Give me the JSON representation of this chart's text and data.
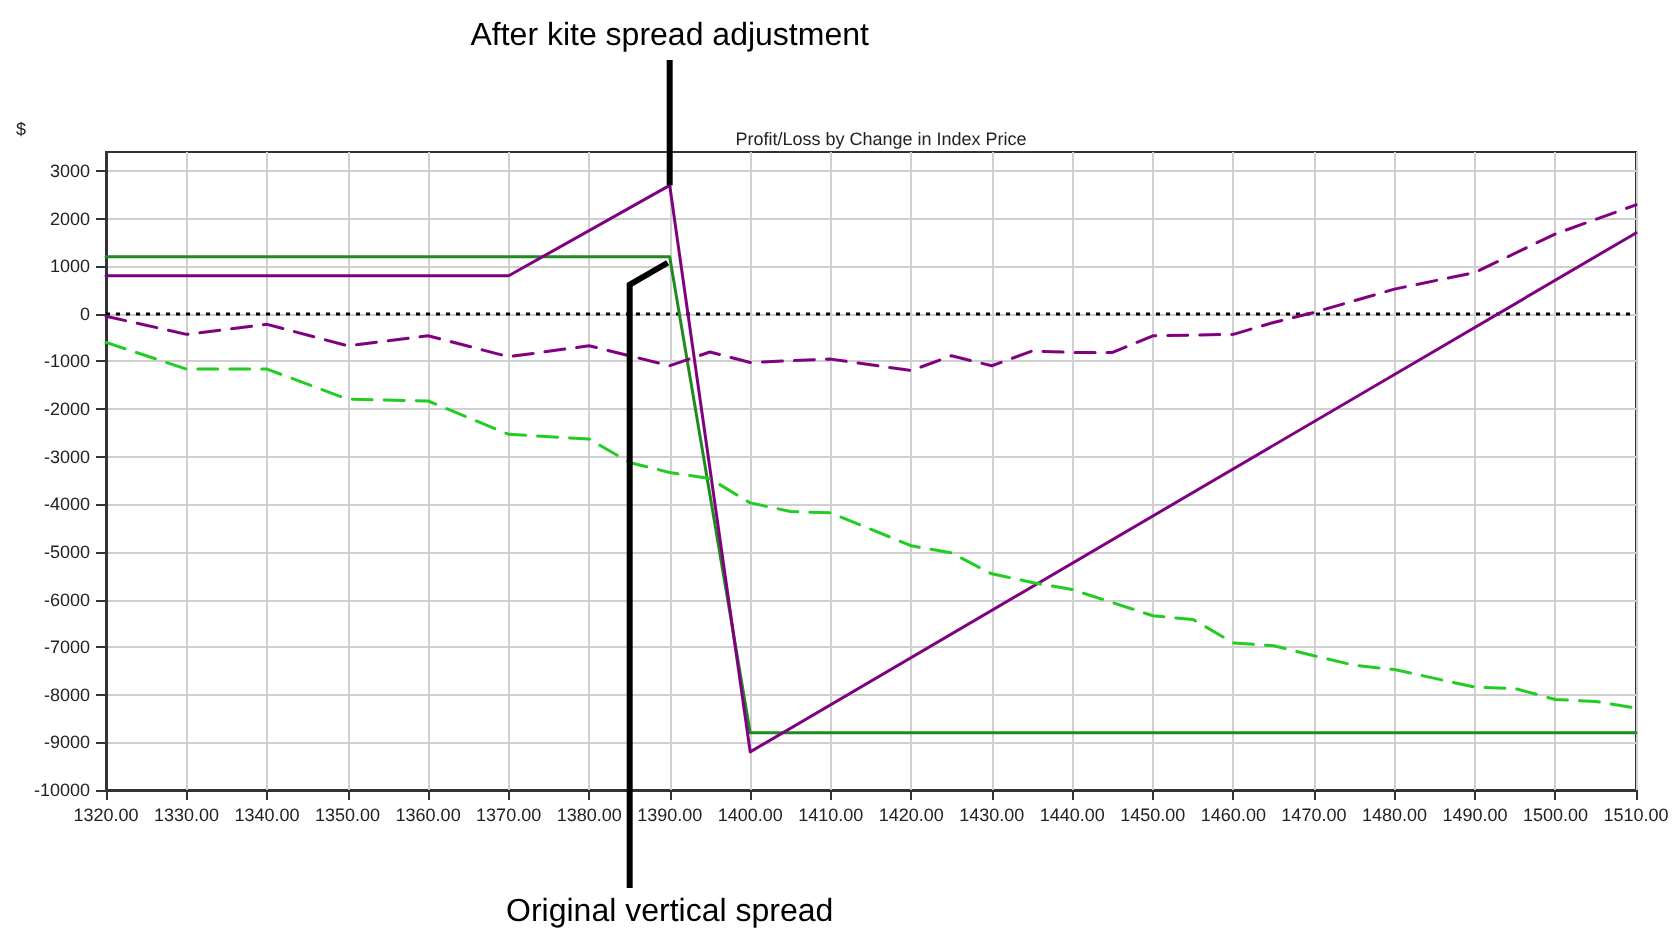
{
  "chart_data": {
    "type": "line",
    "title": "Profit/Loss by Change in Index Price",
    "ylabel": "$",
    "annotations": [
      {
        "text": "After kite spread adjustment",
        "x": 1390,
        "y": 2700
      },
      {
        "text": "Original vertical spread",
        "x": 1390,
        "y": 1200
      }
    ],
    "xlim": [
      1320,
      1510
    ],
    "ylim": [
      -10000,
      3400
    ],
    "xticks": [
      {
        "value": 1320,
        "label": "1320.00"
      },
      {
        "value": 1330,
        "label": "1330.00"
      },
      {
        "value": 1340,
        "label": "1340.00"
      },
      {
        "value": 1350,
        "label": "1350.00"
      },
      {
        "value": 1360,
        "label": "1360.00"
      },
      {
        "value": 1370,
        "label": "1370.00"
      },
      {
        "value": 1380,
        "label": "1380.00"
      },
      {
        "value": 1390,
        "label": "1390.00"
      },
      {
        "value": 1400,
        "label": "1400.00"
      },
      {
        "value": 1410,
        "label": "1410.00"
      },
      {
        "value": 1420,
        "label": "1420.00"
      },
      {
        "value": 1430,
        "label": "1430.00"
      },
      {
        "value": 1440,
        "label": "1440.00"
      },
      {
        "value": 1450,
        "label": "1450.00"
      },
      {
        "value": 1460,
        "label": "1460.00"
      },
      {
        "value": 1470,
        "label": "1470.00"
      },
      {
        "value": 1480,
        "label": "1480.00"
      },
      {
        "value": 1490,
        "label": "1490.00"
      },
      {
        "value": 1500,
        "label": "1500.00"
      },
      {
        "value": 1510,
        "label": "1510.00"
      }
    ],
    "yticks": [
      -10000,
      -9000,
      -8000,
      -7000,
      -6000,
      -5000,
      -4000,
      -3000,
      -2000,
      -1000,
      0,
      1000,
      2000,
      3000
    ],
    "grid": true,
    "marker": "none",
    "ref_lines": [
      {
        "axis": "y",
        "value": 0,
        "color": "#000000",
        "line_style": "dotted"
      }
    ],
    "series": [
      {
        "color": "#1f8a1f",
        "line_style": "solid",
        "x": [
          1320,
          1390,
          1400,
          1510
        ],
        "values": [
          1200,
          1200,
          -8800,
          -8800
        ]
      },
      {
        "color": "#800080",
        "line_style": "solid",
        "x": [
          1320,
          1370,
          1390,
          1400,
          1510
        ],
        "values": [
          800,
          800,
          2700,
          -9200,
          1700
        ]
      },
      {
        "color": "#22cc22",
        "line_style": "dashed",
        "x": [
          1320,
          1330,
          1340,
          1350,
          1360,
          1370,
          1380,
          1385,
          1390,
          1395,
          1400,
          1405,
          1410,
          1420,
          1425,
          1430,
          1435,
          1440,
          1450,
          1455,
          1460,
          1465,
          1470,
          1475,
          1480,
          1490,
          1495,
          1500,
          1505,
          1510
        ],
        "values": [
          -600,
          -1160,
          -1160,
          -1790,
          -1830,
          -2530,
          -2630,
          -3120,
          -3330,
          -3460,
          -3970,
          -4150,
          -4180,
          -4870,
          -5020,
          -5460,
          -5640,
          -5790,
          -6340,
          -6420,
          -6910,
          -6970,
          -7180,
          -7380,
          -7470,
          -7840,
          -7870,
          -8100,
          -8140,
          -8280
        ]
      },
      {
        "color": "#800080",
        "line_style": "dashed",
        "x": [
          1320,
          1330,
          1340,
          1350,
          1360,
          1370,
          1380,
          1390,
          1395,
          1400,
          1410,
          1420,
          1425,
          1430,
          1435,
          1440,
          1445,
          1450,
          1460,
          1465,
          1470,
          1480,
          1490,
          1500,
          1510
        ],
        "values": [
          -50,
          -430,
          -220,
          -670,
          -460,
          -900,
          -670,
          -1090,
          -800,
          -1020,
          -950,
          -1190,
          -880,
          -1090,
          -780,
          -810,
          -810,
          -460,
          -430,
          -180,
          30,
          520,
          870,
          1680,
          2290
        ]
      }
    ]
  }
}
